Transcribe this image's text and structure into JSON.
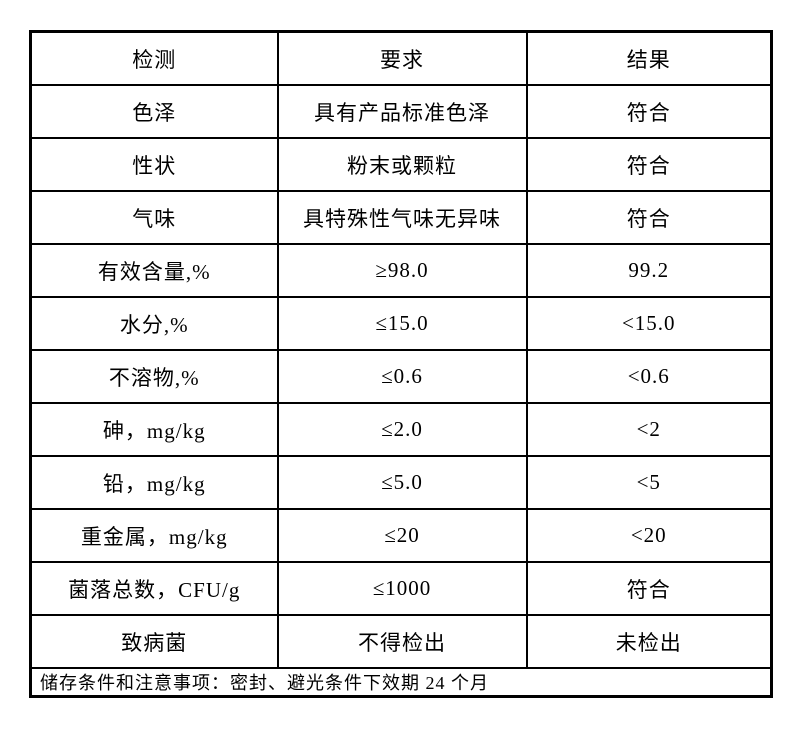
{
  "colors": {
    "background": "#ffffff",
    "border": "#000000",
    "text": "#000000"
  },
  "table": {
    "headers": [
      "检测",
      "要求",
      "结果"
    ],
    "rows": [
      [
        "色泽",
        "具有产品标准色泽",
        "符合"
      ],
      [
        "性状",
        "粉末或颗粒",
        "符合"
      ],
      [
        "气味",
        "具特殊性气味无异味",
        "符合"
      ],
      [
        "有效含量,%",
        "≥98.0",
        "99.2"
      ],
      [
        "水分,%",
        "≤15.0",
        "<15.0"
      ],
      [
        "不溶物,%",
        "≤0.6",
        "<0.6"
      ],
      [
        "砷，mg/kg",
        "≤2.0",
        "<2"
      ],
      [
        "铅，mg/kg",
        "≤5.0",
        "<5"
      ],
      [
        "重金属，mg/kg",
        "≤20",
        "<20"
      ],
      [
        "菌落总数，CFU/g",
        "≤1000",
        "符合"
      ],
      [
        "致病菌",
        "不得检出",
        "未检出"
      ]
    ],
    "footer": "储存条件和注意事项：密封、避光条件下效期 24 个月"
  }
}
